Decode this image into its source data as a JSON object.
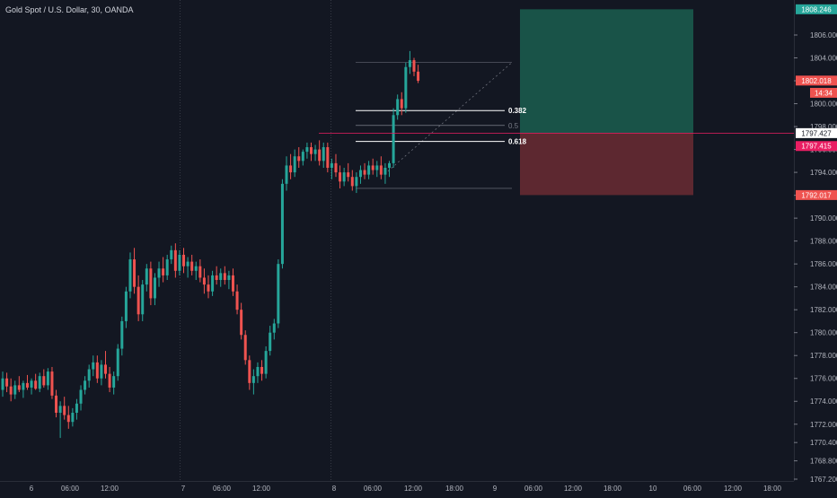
{
  "chart_data": {
    "type": "candlestick",
    "symbol_title": "Gold Spot / U.S. Dollar, 30, OANDA",
    "y_range": [
      1767.2,
      1808.9
    ],
    "price_ticks": [
      1767.2,
      1768.8,
      1770.4,
      1772.0,
      1774.0,
      1776.0,
      1778.0,
      1780.0,
      1782.0,
      1784.0,
      1786.0,
      1788.0,
      1790.0,
      1792.0,
      1794.0,
      1796.0,
      1798.0,
      1800.0,
      1802.0,
      1804.0,
      1806.0
    ],
    "price_tick_labels": [
      "1767.200",
      "1768.800",
      "1770.400",
      "1772.000",
      "1774.000",
      "1776.000",
      "1778.000",
      "1780.000",
      "1782.000",
      "1784.000",
      "1786.000",
      "1788.000",
      "1790.000",
      "1792.000",
      "1794.000",
      "1796.000",
      "1798.000",
      "1800.000",
      "1802.000",
      "1804.000",
      "1806.000"
    ],
    "time_labels": [
      "6",
      "06:00",
      "12:00",
      "7",
      "06:00",
      "12:00",
      "8",
      "06:00",
      "12:00",
      "18:00",
      "9",
      "06:00",
      "12:00",
      "18:00",
      "10",
      "06:00",
      "12:00",
      "18:00"
    ],
    "up_color": "#26a69a",
    "down_color": "#ef5350",
    "candles": [
      [
        1775.0,
        1776.6,
        1774.4,
        1776.0
      ],
      [
        1776.0,
        1776.5,
        1774.8,
        1775.3
      ],
      [
        1775.3,
        1776.0,
        1774.0,
        1774.6
      ],
      [
        1774.6,
        1775.8,
        1774.2,
        1775.4
      ],
      [
        1775.4,
        1776.2,
        1774.8,
        1775.0
      ],
      [
        1775.0,
        1775.8,
        1774.3,
        1775.6
      ],
      [
        1775.6,
        1776.3,
        1775.0,
        1775.2
      ],
      [
        1775.2,
        1776.0,
        1774.6,
        1775.8
      ],
      [
        1775.8,
        1776.4,
        1775.0,
        1775.1
      ],
      [
        1775.1,
        1776.5,
        1774.8,
        1776.2
      ],
      [
        1776.2,
        1776.8,
        1775.2,
        1775.4
      ],
      [
        1775.4,
        1776.9,
        1775.0,
        1776.6
      ],
      [
        1776.6,
        1777.0,
        1774.2,
        1774.5
      ],
      [
        1774.5,
        1775.0,
        1772.6,
        1773.0
      ],
      [
        1773.0,
        1774.0,
        1770.8,
        1773.6
      ],
      [
        1773.6,
        1774.4,
        1772.4,
        1772.8
      ],
      [
        1772.8,
        1773.6,
        1771.6,
        1772.2
      ],
      [
        1772.2,
        1773.4,
        1771.8,
        1773.0
      ],
      [
        1773.0,
        1774.2,
        1772.4,
        1773.8
      ],
      [
        1773.8,
        1775.4,
        1773.2,
        1775.0
      ],
      [
        1775.0,
        1776.2,
        1774.6,
        1775.8
      ],
      [
        1775.8,
        1777.2,
        1775.2,
        1776.8
      ],
      [
        1776.8,
        1778.0,
        1776.2,
        1777.4
      ],
      [
        1777.4,
        1778.0,
        1775.6,
        1776.0
      ],
      [
        1776.0,
        1777.6,
        1775.4,
        1777.2
      ],
      [
        1777.2,
        1778.4,
        1776.0,
        1776.4
      ],
      [
        1776.4,
        1777.0,
        1774.8,
        1775.2
      ],
      [
        1775.2,
        1776.6,
        1774.6,
        1776.2
      ],
      [
        1776.2,
        1779.0,
        1775.8,
        1778.6
      ],
      [
        1778.6,
        1781.4,
        1778.0,
        1781.0
      ],
      [
        1781.0,
        1784.0,
        1780.4,
        1783.6
      ],
      [
        1783.6,
        1787.0,
        1783.0,
        1786.4
      ],
      [
        1786.4,
        1787.4,
        1783.4,
        1784.0
      ],
      [
        1784.0,
        1785.0,
        1781.0,
        1781.6
      ],
      [
        1781.6,
        1784.6,
        1781.0,
        1784.2
      ],
      [
        1784.2,
        1786.0,
        1783.6,
        1785.6
      ],
      [
        1785.6,
        1786.2,
        1782.4,
        1783.0
      ],
      [
        1783.0,
        1785.2,
        1782.4,
        1784.8
      ],
      [
        1784.8,
        1786.2,
        1784.0,
        1785.6
      ],
      [
        1785.6,
        1786.6,
        1784.4,
        1785.0
      ],
      [
        1785.0,
        1786.8,
        1784.6,
        1786.4
      ],
      [
        1786.4,
        1787.6,
        1786.0,
        1787.2
      ],
      [
        1787.2,
        1787.8,
        1784.8,
        1785.4
      ],
      [
        1785.4,
        1787.2,
        1785.0,
        1786.8
      ],
      [
        1786.8,
        1787.4,
        1785.2,
        1785.8
      ],
      [
        1785.8,
        1786.6,
        1784.8,
        1786.2
      ],
      [
        1786.2,
        1786.8,
        1785.0,
        1785.4
      ],
      [
        1785.4,
        1786.2,
        1784.6,
        1785.8
      ],
      [
        1785.8,
        1786.4,
        1784.4,
        1784.8
      ],
      [
        1784.8,
        1785.6,
        1783.4,
        1784.2
      ],
      [
        1784.2,
        1785.0,
        1783.0,
        1783.6
      ],
      [
        1783.6,
        1785.4,
        1783.2,
        1785.0
      ],
      [
        1785.0,
        1785.8,
        1784.2,
        1784.6
      ],
      [
        1784.6,
        1785.6,
        1784.0,
        1785.2
      ],
      [
        1785.2,
        1785.8,
        1784.2,
        1784.6
      ],
      [
        1784.6,
        1785.4,
        1783.8,
        1785.0
      ],
      [
        1785.0,
        1785.6,
        1783.2,
        1783.6
      ],
      [
        1783.6,
        1784.2,
        1781.6,
        1782.0
      ],
      [
        1782.0,
        1782.6,
        1779.4,
        1779.8
      ],
      [
        1779.8,
        1780.2,
        1777.2,
        1777.6
      ],
      [
        1777.6,
        1778.0,
        1775.0,
        1775.6
      ],
      [
        1775.6,
        1776.8,
        1774.6,
        1776.2
      ],
      [
        1776.2,
        1777.4,
        1775.6,
        1777.0
      ],
      [
        1777.0,
        1777.6,
        1775.8,
        1776.4
      ],
      [
        1776.4,
        1778.8,
        1776.0,
        1778.4
      ],
      [
        1778.4,
        1780.6,
        1778.0,
        1780.0
      ],
      [
        1780.0,
        1781.2,
        1779.4,
        1780.8
      ],
      [
        1780.8,
        1786.4,
        1780.4,
        1786.0
      ],
      [
        1786.0,
        1793.4,
        1785.6,
        1793.0
      ],
      [
        1793.0,
        1795.4,
        1792.4,
        1794.6
      ],
      [
        1794.6,
        1795.6,
        1793.4,
        1794.0
      ],
      [
        1794.0,
        1796.0,
        1793.6,
        1795.4
      ],
      [
        1795.4,
        1796.2,
        1794.4,
        1795.0
      ],
      [
        1795.0,
        1796.0,
        1794.6,
        1795.8
      ],
      [
        1795.8,
        1796.6,
        1795.2,
        1796.2
      ],
      [
        1796.2,
        1796.6,
        1795.0,
        1795.6
      ],
      [
        1795.6,
        1796.4,
        1795.0,
        1796.0
      ],
      [
        1796.0,
        1796.8,
        1794.6,
        1795.0
      ],
      [
        1795.0,
        1796.6,
        1794.4,
        1796.2
      ],
      [
        1796.2,
        1796.6,
        1794.0,
        1794.4
      ],
      [
        1794.4,
        1795.2,
        1793.4,
        1794.8
      ],
      [
        1794.8,
        1795.6,
        1793.6,
        1794.0
      ],
      [
        1794.0,
        1794.6,
        1792.6,
        1793.2
      ],
      [
        1793.2,
        1794.4,
        1792.8,
        1794.0
      ],
      [
        1794.0,
        1794.8,
        1793.2,
        1793.6
      ],
      [
        1793.6,
        1794.2,
        1792.4,
        1792.8
      ],
      [
        1792.8,
        1794.0,
        1792.2,
        1793.6
      ],
      [
        1793.6,
        1794.6,
        1793.0,
        1794.2
      ],
      [
        1794.2,
        1794.8,
        1793.4,
        1793.8
      ],
      [
        1793.8,
        1795.0,
        1793.4,
        1794.6
      ],
      [
        1794.6,
        1795.2,
        1793.8,
        1794.2
      ],
      [
        1794.2,
        1795.0,
        1793.6,
        1794.6
      ],
      [
        1794.6,
        1795.4,
        1793.4,
        1793.8
      ],
      [
        1793.8,
        1794.8,
        1793.0,
        1794.4
      ],
      [
        1794.4,
        1795.0,
        1793.6,
        1794.8
      ],
      [
        1794.8,
        1799.6,
        1794.4,
        1799.0
      ],
      [
        1799.0,
        1800.8,
        1798.6,
        1800.4
      ],
      [
        1800.4,
        1801.0,
        1799.0,
        1799.6
      ],
      [
        1799.6,
        1803.6,
        1799.2,
        1803.2
      ],
      [
        1803.2,
        1804.6,
        1802.6,
        1803.8
      ],
      [
        1803.8,
        1804.0,
        1802.4,
        1802.8
      ],
      [
        1802.8,
        1803.4,
        1801.8,
        1802.0
      ]
    ],
    "fib_levels": [
      {
        "label": "0.382",
        "price": 1799.4,
        "emphasized": true
      },
      {
        "label": "0.5",
        "price": 1798.1,
        "emphasized": false
      },
      {
        "label": "0.618",
        "price": 1796.7,
        "emphasized": true
      }
    ],
    "position": {
      "target_color": "#1b5e4f",
      "stop_color": "#6b2b33"
    },
    "price_labels": [
      {
        "text": "1808.246",
        "price": 1808.246,
        "bg": "#26a69a"
      },
      {
        "text": "1802.018",
        "price": 1802.018,
        "bg": "#ef5350"
      },
      {
        "text": "14:34",
        "price": 1800.95,
        "bg": "#ef5350"
      },
      {
        "text": "1797.427",
        "price": 1797.427,
        "bg": "#ffffff"
      },
      {
        "text": "1797.415",
        "price": 1796.3,
        "bg": "#e91e63"
      },
      {
        "text": "1792.017",
        "price": 1792.017,
        "bg": "#ef5350"
      }
    ]
  }
}
